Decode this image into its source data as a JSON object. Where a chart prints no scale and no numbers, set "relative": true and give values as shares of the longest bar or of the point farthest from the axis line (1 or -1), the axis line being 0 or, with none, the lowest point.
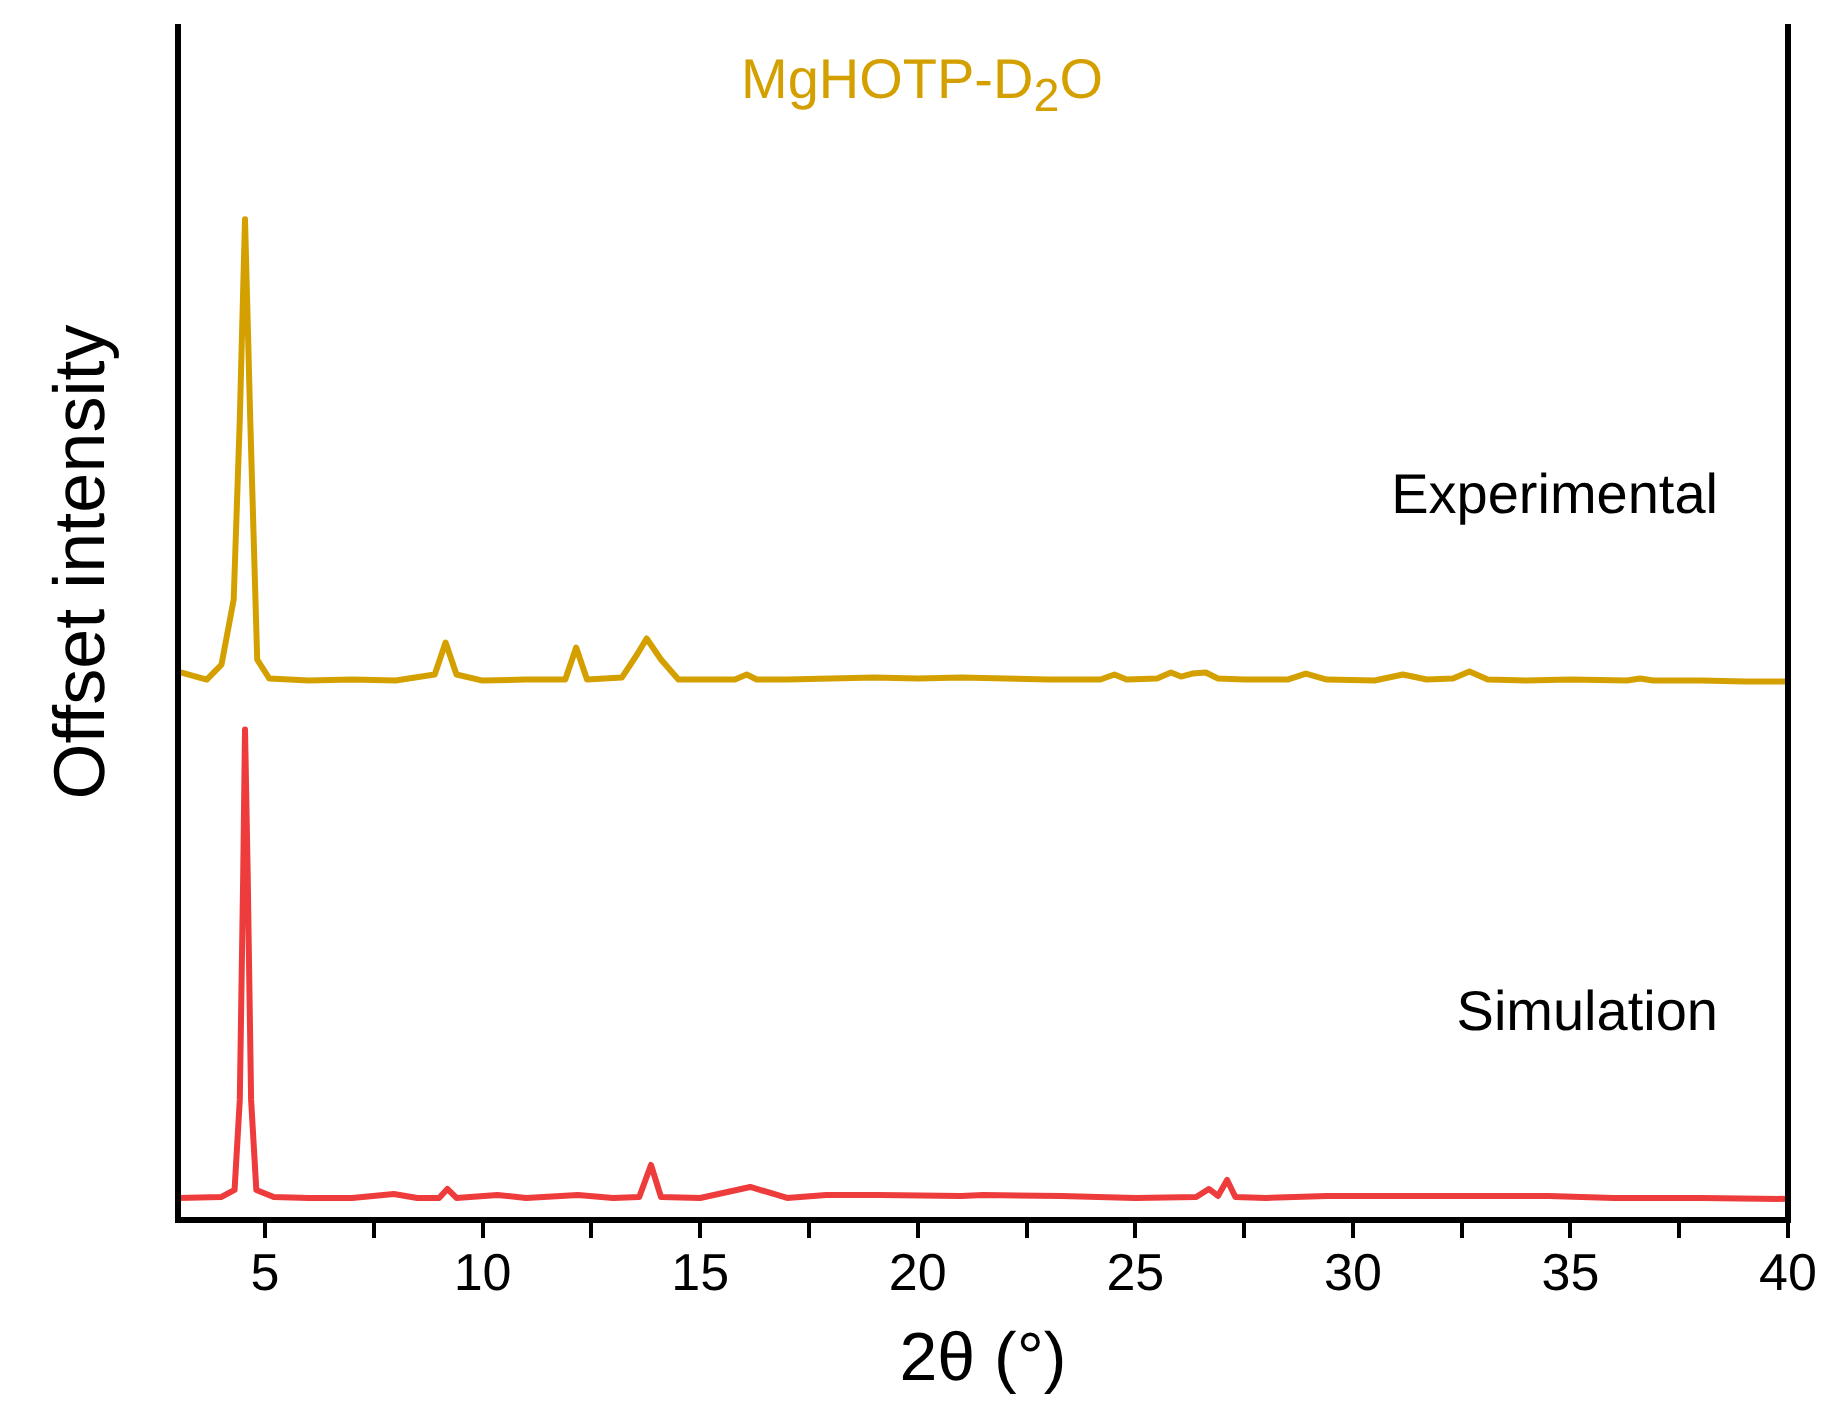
{
  "chart_data": {
    "type": "line",
    "title": "MgHOTP-D$_{2}$O",
    "xlabel": "2θ (°)",
    "ylabel": "Offset intensity",
    "relative": true,
    "xlim": [
      3,
      40
    ],
    "xticks": [
      5,
      {
        "value": 7.5,
        "label": null
      },
      10,
      {
        "value": 12.5,
        "label": null
      },
      15,
      {
        "value": 17.5,
        "label": null
      },
      20,
      {
        "value": 22.5,
        "label": null
      },
      25,
      {
        "value": 27.5,
        "label": null
      },
      30,
      {
        "value": 32.5,
        "label": null
      },
      35,
      {
        "value": 37.5,
        "label": null
      },
      40
    ],
    "grid": false,
    "legend": false,
    "marker": "none",
    "line_style": "solid",
    "series": [
      {
        "name": "Experimental",
        "color": "#d4a000",
        "x": [
          3,
          3.66,
          4.0,
          4.28,
          4.42,
          4.54,
          4.66,
          4.82,
          5.1,
          6,
          7,
          8,
          8.9,
          9.15,
          9.4,
          10,
          11,
          11.9,
          12.15,
          12.4,
          13.2,
          13.55,
          13.77,
          14.1,
          14.5,
          15,
          15.8,
          16.07,
          16.3,
          17,
          18,
          19,
          20,
          21,
          22,
          23,
          24.2,
          24.52,
          24.8,
          25.5,
          25.82,
          26.05,
          26.31,
          26.62,
          26.9,
          27.5,
          28.5,
          28.92,
          29.4,
          30.5,
          31.15,
          31.7,
          32.3,
          32.68,
          33.1,
          34,
          35,
          36.3,
          36.6,
          36.9,
          38,
          39,
          40
        ],
        "values": [
          0.548,
          0.54,
          0.555,
          0.62,
          0.8,
          1,
          0.8,
          0.56,
          0.541,
          0.539,
          0.54,
          0.539,
          0.545,
          0.577,
          0.545,
          0.539,
          0.54,
          0.54,
          0.572,
          0.54,
          0.542,
          0.565,
          0.581,
          0.56,
          0.54,
          0.54,
          0.54,
          0.545,
          0.54,
          0.54,
          0.541,
          0.542,
          0.541,
          0.542,
          0.541,
          0.54,
          0.54,
          0.545,
          0.54,
          0.541,
          0.547,
          0.543,
          0.546,
          0.547,
          0.541,
          0.54,
          0.54,
          0.546,
          0.54,
          0.539,
          0.545,
          0.54,
          0.541,
          0.548,
          0.54,
          0.539,
          0.54,
          0.539,
          0.541,
          0.539,
          0.539,
          0.538,
          0.538
        ]
      },
      {
        "name": "Simulation",
        "color": "#ee3b3b",
        "x": [
          3,
          4.0,
          4.3,
          4.42,
          4.5,
          4.54,
          4.6,
          4.68,
          4.8,
          5.2,
          6,
          7,
          7.96,
          8.5,
          9.0,
          9.19,
          9.4,
          10.34,
          11,
          12.19,
          13,
          13.6,
          13.87,
          14.1,
          15,
          16.15,
          17,
          17.9,
          19.1,
          21.0,
          21.5,
          23.3,
          25,
          26.4,
          26.69,
          26.9,
          27.11,
          27.3,
          28,
          29.4,
          31.4,
          32.7,
          34.5,
          36,
          38,
          40
        ],
        "values": [
          0.022,
          0.023,
          0.03,
          0.12,
          0.35,
          0.49,
          0.35,
          0.12,
          0.03,
          0.023,
          0.022,
          0.022,
          0.026,
          0.022,
          0.022,
          0.031,
          0.022,
          0.025,
          0.022,
          0.025,
          0.022,
          0.023,
          0.055,
          0.023,
          0.022,
          0.033,
          0.022,
          0.025,
          0.025,
          0.024,
          0.025,
          0.024,
          0.022,
          0.023,
          0.031,
          0.024,
          0.04,
          0.023,
          0.022,
          0.024,
          0.024,
          0.024,
          0.024,
          0.022,
          0.022,
          0.021
        ]
      }
    ]
  }
}
